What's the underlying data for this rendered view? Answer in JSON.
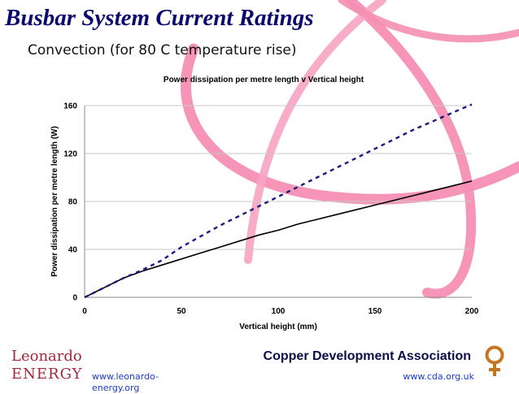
{
  "slide": {
    "title": "Busbar System Current Ratings",
    "subtitle": "Convection (for 80 C temperature rise)"
  },
  "footer": {
    "brand_line1": "Leonardo",
    "brand_line2": "ENERGY",
    "left_url": "www.leonardo-energy.org",
    "org_name": "Copper Development Association",
    "right_url": "www.cda.org.uk"
  },
  "colors": {
    "swirl": "#f58fb3",
    "series_solid": "#000000",
    "series_dashed": "#1a1a80",
    "title": "#0a0a6e",
    "brand": "#a3273f"
  },
  "chart_data": {
    "type": "line",
    "title": "Power dissipation per metre length v Vertical height",
    "xlabel": "Vertical height (mm)",
    "ylabel": "Power dissipation per metre length (W)",
    "xlim": [
      0,
      200
    ],
    "ylim": [
      0,
      160
    ],
    "xticks": [
      0,
      50,
      100,
      150,
      200
    ],
    "yticks": [
      0,
      40,
      80,
      120,
      160
    ],
    "grid": "horizontal",
    "series": [
      {
        "style": "solid",
        "x": [
          0,
          10,
          20,
          30,
          40,
          50,
          60,
          70,
          80,
          90,
          100,
          110,
          120,
          130,
          140,
          150,
          160,
          170,
          180,
          190,
          200
        ],
        "y": [
          0,
          8,
          16,
          22,
          27,
          32,
          37,
          42,
          47,
          52,
          56,
          61,
          65,
          69,
          73,
          77,
          81,
          85,
          89,
          93,
          97
        ]
      },
      {
        "style": "dashed",
        "x": [
          0,
          10,
          20,
          30,
          40,
          50,
          60,
          70,
          80,
          90,
          100,
          110,
          120,
          130,
          140,
          150,
          160,
          170,
          180,
          190,
          200
        ],
        "y": [
          0,
          8,
          16,
          23,
          31,
          42,
          51,
          60,
          68,
          76,
          84,
          92,
          100,
          108,
          116,
          124,
          132,
          140,
          147,
          154,
          161
        ]
      }
    ]
  }
}
